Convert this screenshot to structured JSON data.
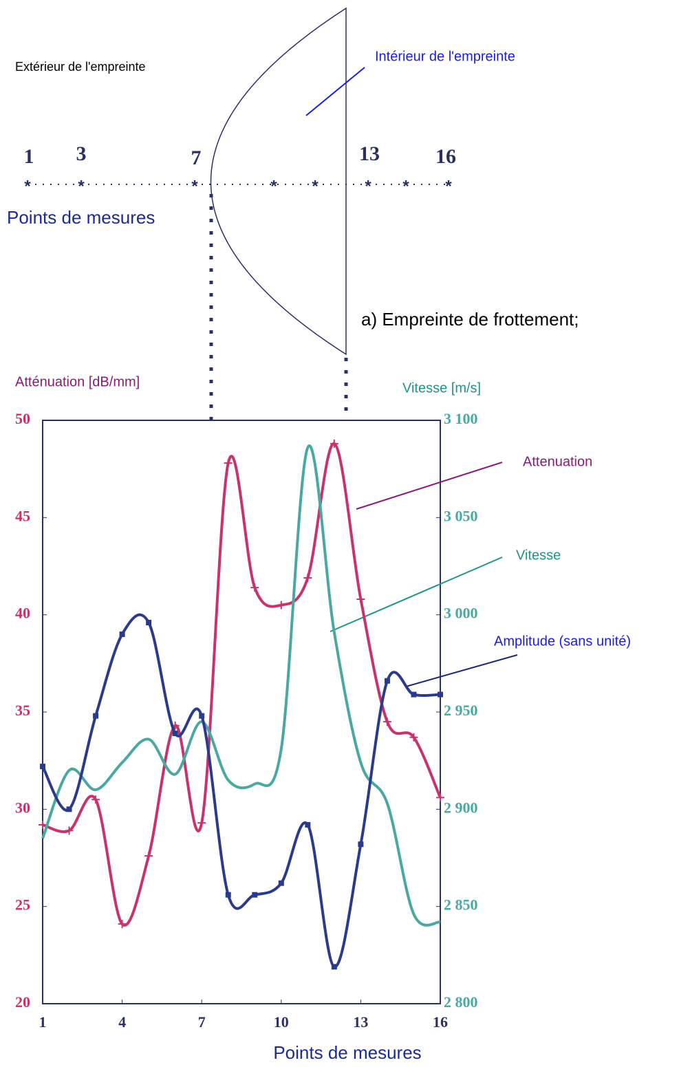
{
  "diagram": {
    "outside_label": "Extérieur de l'empreinte",
    "inside_label": "Intérieur de l'empreinte",
    "point_numbers": [
      "1",
      "3",
      "7",
      "13",
      "16"
    ],
    "points_label": "Points de mesures",
    "caption": "a) Empreinte de frottement;"
  },
  "chart_data": {
    "type": "line",
    "y_label": "Atténuation [dB/mm]",
    "y2_label": "Vitesse [m/s]",
    "x_label": "Points de mesures",
    "x": [
      1,
      2,
      3,
      4,
      5,
      6,
      7,
      8,
      9,
      10,
      11,
      12,
      13,
      14,
      15,
      16
    ],
    "xlim": [
      1,
      16
    ],
    "xticks": [
      1,
      4,
      7,
      10,
      13,
      16
    ],
    "ylim": [
      20,
      50
    ],
    "yticks": [
      20,
      25,
      30,
      35,
      40,
      45,
      50
    ],
    "y2lim": [
      2800,
      3100
    ],
    "y2ticks": [
      {
        "value": 2800,
        "label": "2 800"
      },
      {
        "value": 2850,
        "label": "2 850"
      },
      {
        "value": 2900,
        "label": "2 900"
      },
      {
        "value": 2950,
        "label": "2 950"
      },
      {
        "value": 3000,
        "label": "3 000"
      },
      {
        "value": 3050,
        "label": "3 050"
      },
      {
        "value": 3100,
        "label": "3 100"
      }
    ],
    "grid": false,
    "series": [
      {
        "name": "Attenuation",
        "color": "#c8326e",
        "axis": "y",
        "values": [
          29.2,
          28.9,
          30.5,
          24.1,
          27.6,
          34.3,
          29.3,
          47.8,
          41.4,
          40.5,
          41.9,
          48.8,
          40.8,
          34.5,
          33.7,
          30.6
        ]
      },
      {
        "name": "Vitesse",
        "color": "#4aa8a0",
        "axis": "y2",
        "values": [
          2885,
          2920,
          2910,
          2924,
          2936,
          2918,
          2945,
          2915,
          2913,
          2931,
          3086,
          2991,
          2924,
          2903,
          2846,
          2842
        ]
      },
      {
        "name": "Amplitude (sans unité)",
        "color": "#2a3a8c",
        "axis": "y",
        "values": [
          32.2,
          30.0,
          34.8,
          39.0,
          39.6,
          33.9,
          34.8,
          25.6,
          25.6,
          26.2,
          29.2,
          21.9,
          28.2,
          36.6,
          35.9,
          35.9
        ]
      }
    ]
  }
}
